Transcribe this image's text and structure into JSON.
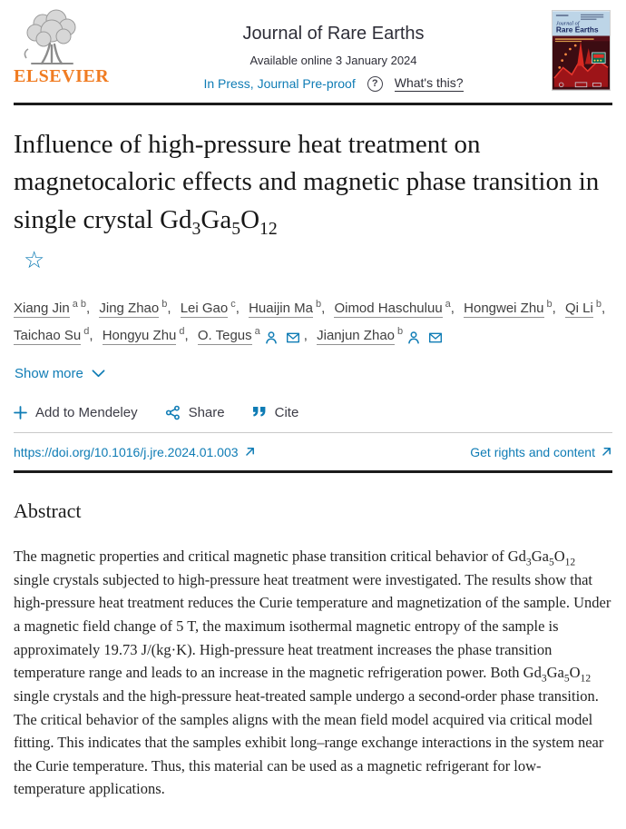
{
  "colors": {
    "link_blue": "#0f7cb5",
    "elsevier_orange": "#f07c22"
  },
  "header": {
    "publisher": "ELSEVIER",
    "journal_title": "Journal of Rare Earths",
    "available_online": "Available online 3 January 2024",
    "in_press": "In Press, Journal Pre-proof",
    "help_glyph": "?",
    "whats_this": "What's this?"
  },
  "cover": {
    "line_top": "Journal of",
    "line_main": "Rare Earths"
  },
  "article": {
    "title": "Influence of high-pressure heat treatment on magnetocaloric effects and magnetic phase transition in single crystal Gd~3~Ga~5~O~12~",
    "show_more": "Show more"
  },
  "authors": [
    {
      "name": "Xiang Jin",
      "sup": "a b"
    },
    {
      "name": "Jing Zhao",
      "sup": "b"
    },
    {
      "name": "Lei Gao",
      "sup": "c"
    },
    {
      "name": "Huaijin Ma",
      "sup": "b"
    },
    {
      "name": "Oimod Haschuluu",
      "sup": "a"
    },
    {
      "name": "Hongwei Zhu",
      "sup": "b"
    },
    {
      "name": "Qi Li",
      "sup": "b"
    },
    {
      "name": "Taichao Su",
      "sup": "d"
    },
    {
      "name": "Hongyu Zhu",
      "sup": "d"
    },
    {
      "name": "O. Tegus",
      "sup": "a"
    },
    {
      "name": "Jianjun Zhao",
      "sup": "b"
    }
  ],
  "ui": {
    "comma": ","
  },
  "actions": {
    "mendeley": "Add to Mendeley",
    "share": "Share",
    "cite": "Cite"
  },
  "doi": {
    "url_text": "https://doi.org/10.1016/j.jre.2024.01.003",
    "rights": "Get rights and content"
  },
  "abstract": {
    "heading": "Abstract",
    "text": "The magnetic properties and critical magnetic phase transition critical behavior of Gd~3~Ga~5~O~12~ single crystals subjected to high-pressure heat treatment were investigated. The results show that high-pressure heat treatment reduces the Curie temperature and magnetization of the sample. Under a magnetic field change of 5 T, the maximum isothermal magnetic entropy of the sample is approximately 19.73 J/(kg·K). High-pressure heat treatment increases the phase transition temperature range and leads to an increase in the magnetic refrigeration power. Both Gd~3~Ga~5~O~12~ single crystals and the high-pressure heat-treated sample undergo a second-order phase transition. The critical behavior of the samples aligns with the mean field model acquired via critical model fitting. This indicates that the samples exhibit long–range exchange interactions in the system near the Curie temperature. Thus, this material can be used as a magnetic refrigerant for low-temperature applications."
  }
}
